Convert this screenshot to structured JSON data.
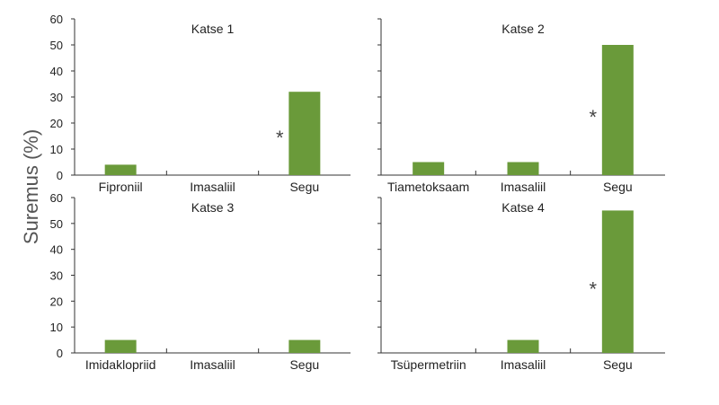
{
  "chart_data": {
    "type": "bar",
    "ylabel": "Suremus (%)",
    "bar_color": "#6a9a3a",
    "panels": [
      {
        "title": "Katse 1",
        "categories": [
          "Fiproniil",
          "Imasaliil",
          "Segu"
        ],
        "values": [
          4,
          0,
          32
        ],
        "significance": [
          "",
          "",
          "*"
        ],
        "ylim": [
          0,
          60
        ],
        "yticks": [
          "0",
          "10",
          "20",
          "30",
          "40",
          "50",
          "60"
        ]
      },
      {
        "title": "Katse 2",
        "categories": [
          "Tiametoksaam",
          "Imasaliil",
          "Segu"
        ],
        "values": [
          5,
          5,
          50
        ],
        "significance": [
          "",
          "",
          "*"
        ],
        "ylim": [
          0,
          60
        ],
        "yticks": []
      },
      {
        "title": "Katse 3",
        "categories": [
          "Imidaklopriid",
          "Imasaliil",
          "Segu"
        ],
        "values": [
          5,
          0,
          5
        ],
        "significance": [
          "",
          "",
          ""
        ],
        "ylim": [
          0,
          60
        ],
        "yticks": [
          "0",
          "10",
          "20",
          "30",
          "40",
          "50",
          "60"
        ]
      },
      {
        "title": "Katse 4",
        "categories": [
          "Tsüpermetriin",
          "Imasaliil",
          "Segu"
        ],
        "values": [
          0,
          5,
          55
        ],
        "significance": [
          "",
          "",
          "*"
        ],
        "ylim": [
          0,
          60
        ],
        "yticks": []
      }
    ]
  }
}
